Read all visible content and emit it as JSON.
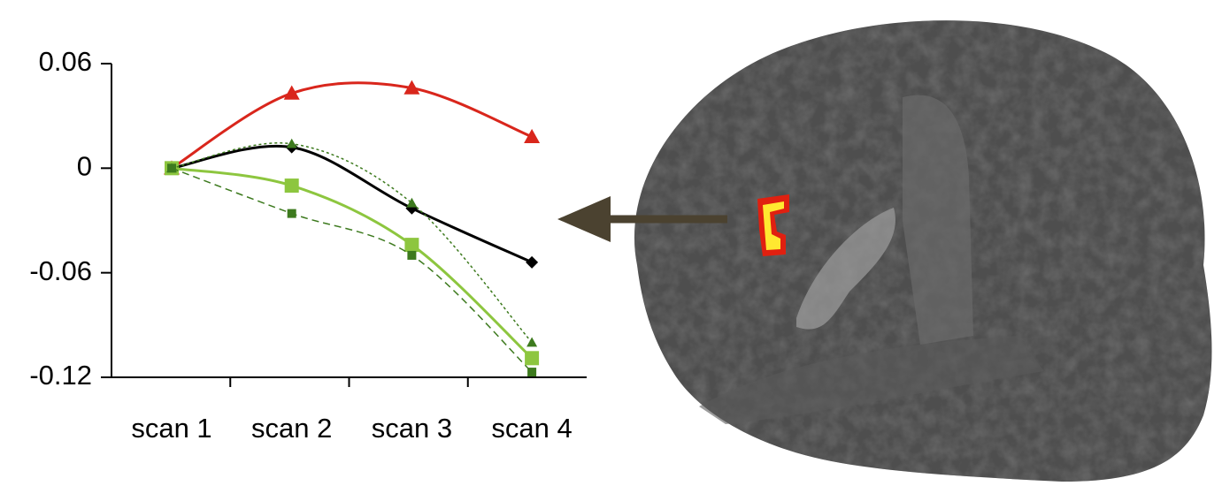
{
  "chart_data": {
    "type": "line",
    "categories": [
      "scan 1",
      "scan 2",
      "scan 3",
      "scan 4"
    ],
    "series": [
      {
        "color": "#d9261c",
        "marker": "triangle",
        "dash": "solid",
        "values": [
          0,
          0.043,
          0.046,
          0.018
        ]
      },
      {
        "color": "#000000",
        "marker": "diamond",
        "dash": "solid",
        "values": [
          0,
          0.012,
          -0.023,
          -0.054
        ]
      },
      {
        "color": "#8dc63f",
        "marker": "square",
        "dash": "solid",
        "values": [
          0,
          -0.01,
          -0.044,
          -0.109
        ]
      },
      {
        "color": "#3d7a1e",
        "marker": "small-square",
        "dash": "dashed",
        "values": [
          0,
          -0.026,
          -0.05,
          -0.117
        ]
      },
      {
        "color": "#3d7a1e",
        "marker": "small-triangle",
        "dash": "dotted",
        "values": [
          0,
          0.014,
          -0.02,
          -0.1
        ]
      }
    ],
    "ylim": [
      -0.12,
      0.06
    ],
    "yticks": [
      -0.12,
      -0.06,
      0,
      0.06
    ],
    "grid": false
  }
}
